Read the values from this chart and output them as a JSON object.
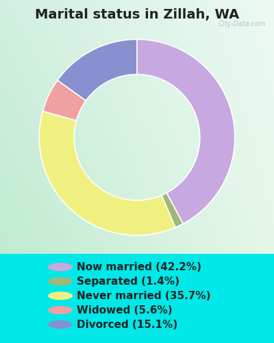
{
  "title": "Marital status in Zillah, WA",
  "slices": [
    42.2,
    1.4,
    35.7,
    5.6,
    15.1
  ],
  "labels": [
    "Now married (42.2%)",
    "Separated (1.4%)",
    "Never married (35.7%)",
    "Widowed (5.6%)",
    "Divorced (15.1%)"
  ],
  "colors": [
    "#c8a8e0",
    "#a0b878",
    "#f0f080",
    "#f0a0a0",
    "#8890d0"
  ],
  "bg_gradient_left": "#c8ece0",
  "bg_gradient_right": "#e8f8e8",
  "title_fontsize": 14,
  "legend_fontsize": 11,
  "watermark": "City-Data.com",
  "start_angle": 90,
  "donut_width": 0.35
}
